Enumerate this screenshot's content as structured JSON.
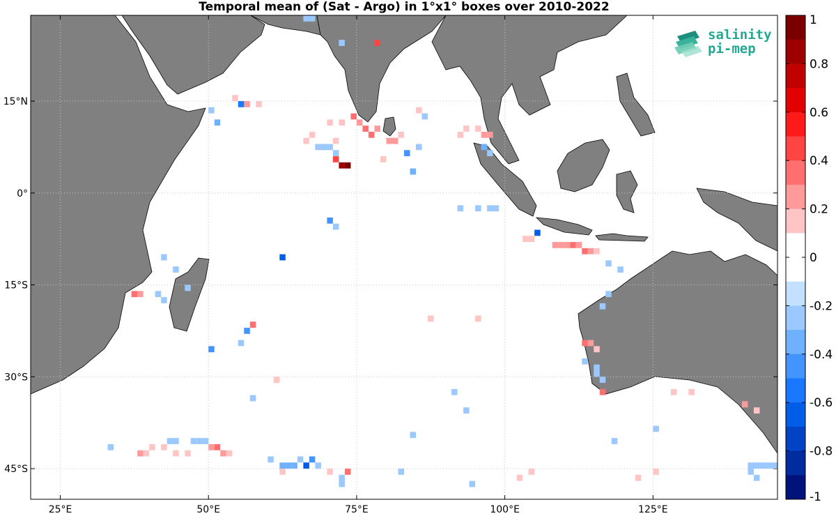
{
  "title": "Temporal mean of (Sat - Argo) in 1°x1° boxes over 2010-2022",
  "logo": {
    "line1": "salinity",
    "line2": "pi-mep"
  },
  "map": {
    "lon_range": [
      20,
      146
    ],
    "lat_range": [
      -50,
      29
    ],
    "lat_ticks": [
      {
        "value": 15,
        "label": "15°N"
      },
      {
        "value": 0,
        "label": "0°"
      },
      {
        "value": -15,
        "label": "15°S"
      },
      {
        "value": -30,
        "label": "30°S"
      },
      {
        "value": -45,
        "label": "45°S"
      }
    ],
    "lon_ticks": [
      {
        "value": 25,
        "label": "25°E"
      },
      {
        "value": 50,
        "label": "50°E"
      },
      {
        "value": 75,
        "label": "75°E"
      },
      {
        "value": 100,
        "label": "100°E"
      },
      {
        "value": 125,
        "label": "125°E"
      }
    ],
    "grid": "dotted",
    "land_color": "#808080",
    "ocean_color": "#ffffff"
  },
  "colorbar": {
    "range": [
      -1,
      1
    ],
    "step": 0.1,
    "tick_labels": [
      "1",
      "0.8",
      "0.6",
      "0.4",
      "0.2",
      "0",
      "-0.2",
      "-0.4",
      "-0.6",
      "-0.8",
      "-1"
    ],
    "colors_top_to_bottom": [
      "#7a0000",
      "#9e0000",
      "#c10000",
      "#e30000",
      "#ff1a1a",
      "#ff4444",
      "#ff6f6f",
      "#ff9a9a",
      "#ffc4c4",
      "#ffffff",
      "#ffffff",
      "#c4e0ff",
      "#9ac8ff",
      "#6fb0ff",
      "#4494ff",
      "#1a78ff",
      "#005ee6",
      "#0043c4",
      "#002ca0",
      "#00137a"
    ]
  },
  "chart_data": {
    "type": "heatmap",
    "variable": "Sat - Argo",
    "cells": [
      [
        73,
        4,
        0.9
      ],
      [
        72,
        4,
        0.8
      ],
      [
        71,
        5,
        0.5
      ],
      [
        84,
        3,
        -0.3
      ],
      [
        78,
        24,
        0.5
      ],
      [
        74,
        12,
        0.4
      ],
      [
        76,
        10,
        0.4
      ],
      [
        77,
        9,
        0.4
      ],
      [
        78,
        10,
        0.3
      ],
      [
        75,
        11,
        0.3
      ],
      [
        80,
        8,
        0.3
      ],
      [
        81,
        8,
        0.3
      ],
      [
        82,
        9,
        0.2
      ],
      [
        70,
        11,
        0.2
      ],
      [
        72,
        11,
        0.2
      ],
      [
        66,
        8,
        0.2
      ],
      [
        67,
        9,
        0.2
      ],
      [
        71,
        8,
        0.2
      ],
      [
        92,
        9,
        0.2
      ],
      [
        93,
        10,
        0.2
      ],
      [
        95,
        10,
        0.2
      ],
      [
        96,
        9,
        0.3
      ],
      [
        97,
        9,
        0.3
      ],
      [
        103,
        -8,
        0.2
      ],
      [
        104,
        -8,
        0.2
      ],
      [
        108,
        -9,
        0.3
      ],
      [
        109,
        -9,
        0.3
      ],
      [
        110,
        -9,
        0.3
      ],
      [
        111,
        -9,
        0.4
      ],
      [
        112,
        -9,
        0.3
      ],
      [
        113,
        -10,
        0.4
      ],
      [
        114,
        -10,
        0.3
      ],
      [
        115,
        -10,
        0.2
      ],
      [
        56,
        14,
        0.3
      ],
      [
        58,
        14,
        0.2
      ],
      [
        54,
        15,
        0.2
      ],
      [
        61,
        -31,
        0.2
      ],
      [
        57,
        -22,
        0.4
      ],
      [
        37,
        -17,
        0.4
      ],
      [
        38,
        -17,
        0.3
      ],
      [
        113,
        -25,
        0.4
      ],
      [
        114,
        -25,
        0.3
      ],
      [
        115,
        -26,
        0.2
      ],
      [
        116,
        -33,
        0.4
      ],
      [
        128,
        -33,
        0.2
      ],
      [
        131,
        -33,
        0.2
      ],
      [
        140,
        -35,
        0.3
      ],
      [
        142,
        -36,
        0.2
      ],
      [
        50,
        -42,
        0.3
      ],
      [
        51,
        -42,
        0.4
      ],
      [
        52,
        -43,
        0.3
      ],
      [
        53,
        -43,
        0.2
      ],
      [
        38,
        -43,
        0.3
      ],
      [
        39,
        -43,
        0.2
      ],
      [
        40,
        -42,
        0.2
      ],
      [
        42,
        -42,
        0.2
      ],
      [
        44,
        -43,
        0.2
      ],
      [
        46,
        -43,
        0.2
      ],
      [
        73,
        -46,
        0.4
      ],
      [
        70,
        -46,
        0.2
      ],
      [
        62,
        -46,
        0.2
      ],
      [
        102,
        -47,
        0.2
      ],
      [
        104,
        -46,
        0.2
      ],
      [
        122,
        -47,
        0.2
      ],
      [
        125,
        -46,
        0.2
      ],
      [
        79,
        5,
        0.2
      ],
      [
        87,
        -21,
        0.2
      ],
      [
        95,
        -21,
        0.2
      ],
      [
        86,
        12,
        -0.2
      ],
      [
        85,
        13,
        0.2
      ],
      [
        85,
        7,
        -0.2
      ],
      [
        83,
        6,
        -0.4
      ],
      [
        97,
        6,
        -0.2
      ],
      [
        96,
        7,
        -0.3
      ],
      [
        55,
        14,
        -0.5
      ],
      [
        51,
        11,
        -0.3
      ],
      [
        50,
        13,
        -0.2
      ],
      [
        72,
        24,
        -0.2
      ],
      [
        67,
        28,
        -0.2
      ],
      [
        66,
        28,
        -0.2
      ],
      [
        68,
        7,
        -0.2
      ],
      [
        69,
        7,
        -0.2
      ],
      [
        70,
        7,
        -0.2
      ],
      [
        71,
        6,
        -0.2
      ],
      [
        62,
        -11,
        -0.6
      ],
      [
        70,
        -5,
        -0.4
      ],
      [
        71,
        -6,
        -0.2
      ],
      [
        56,
        -23,
        -0.4
      ],
      [
        50,
        -26,
        -0.4
      ],
      [
        105,
        -7,
        -0.6
      ],
      [
        97,
        -3,
        -0.2
      ],
      [
        98,
        -3,
        -0.2
      ],
      [
        95,
        -3,
        -0.2
      ],
      [
        92,
        -3,
        -0.2
      ],
      [
        66,
        -45,
        -0.6
      ],
      [
        67,
        -44,
        -0.4
      ],
      [
        62,
        -45,
        -0.3
      ],
      [
        63,
        -45,
        -0.3
      ],
      [
        64,
        -45,
        -0.3
      ],
      [
        60,
        -44,
        -0.2
      ],
      [
        65,
        -44,
        -0.2
      ],
      [
        68,
        -45,
        -0.2
      ],
      [
        72,
        -47,
        -0.2
      ],
      [
        72,
        -48,
        -0.2
      ],
      [
        42,
        -11,
        -0.2
      ],
      [
        44,
        -13,
        -0.2
      ],
      [
        46,
        -16,
        -0.2
      ],
      [
        41,
        -17,
        -0.2
      ],
      [
        42,
        -18,
        -0.2
      ],
      [
        57,
        -34,
        -0.2
      ],
      [
        33,
        -42,
        -0.2
      ],
      [
        47,
        -41,
        -0.2
      ],
      [
        48,
        -41,
        -0.2
      ],
      [
        49,
        -41,
        -0.2
      ],
      [
        43,
        -41,
        -0.2
      ],
      [
        44,
        -41,
        -0.2
      ],
      [
        141,
        -45,
        -0.2
      ],
      [
        142,
        -45,
        -0.2
      ],
      [
        143,
        -45,
        -0.2
      ],
      [
        144,
        -45,
        -0.2
      ],
      [
        145,
        -45,
        -0.2
      ],
      [
        141,
        -46,
        -0.2
      ],
      [
        142,
        -47,
        -0.2
      ],
      [
        125,
        -39,
        -0.2
      ],
      [
        118,
        -41,
        -0.2
      ],
      [
        94,
        -48,
        -0.2
      ],
      [
        84,
        -40,
        -0.2
      ],
      [
        82,
        -46,
        -0.2
      ],
      [
        55,
        -25,
        -0.2
      ],
      [
        117,
        -12,
        -0.2
      ],
      [
        119,
        -13,
        -0.2
      ],
      [
        117,
        -17,
        -0.2
      ],
      [
        116,
        -19,
        -0.2
      ],
      [
        113,
        -28,
        -0.2
      ],
      [
        115,
        -29,
        -0.2
      ],
      [
        115,
        -30,
        -0.2
      ],
      [
        91,
        -33,
        -0.2
      ],
      [
        93,
        -36,
        -0.2
      ],
      [
        116,
        -31,
        -0.2
      ]
    ]
  }
}
